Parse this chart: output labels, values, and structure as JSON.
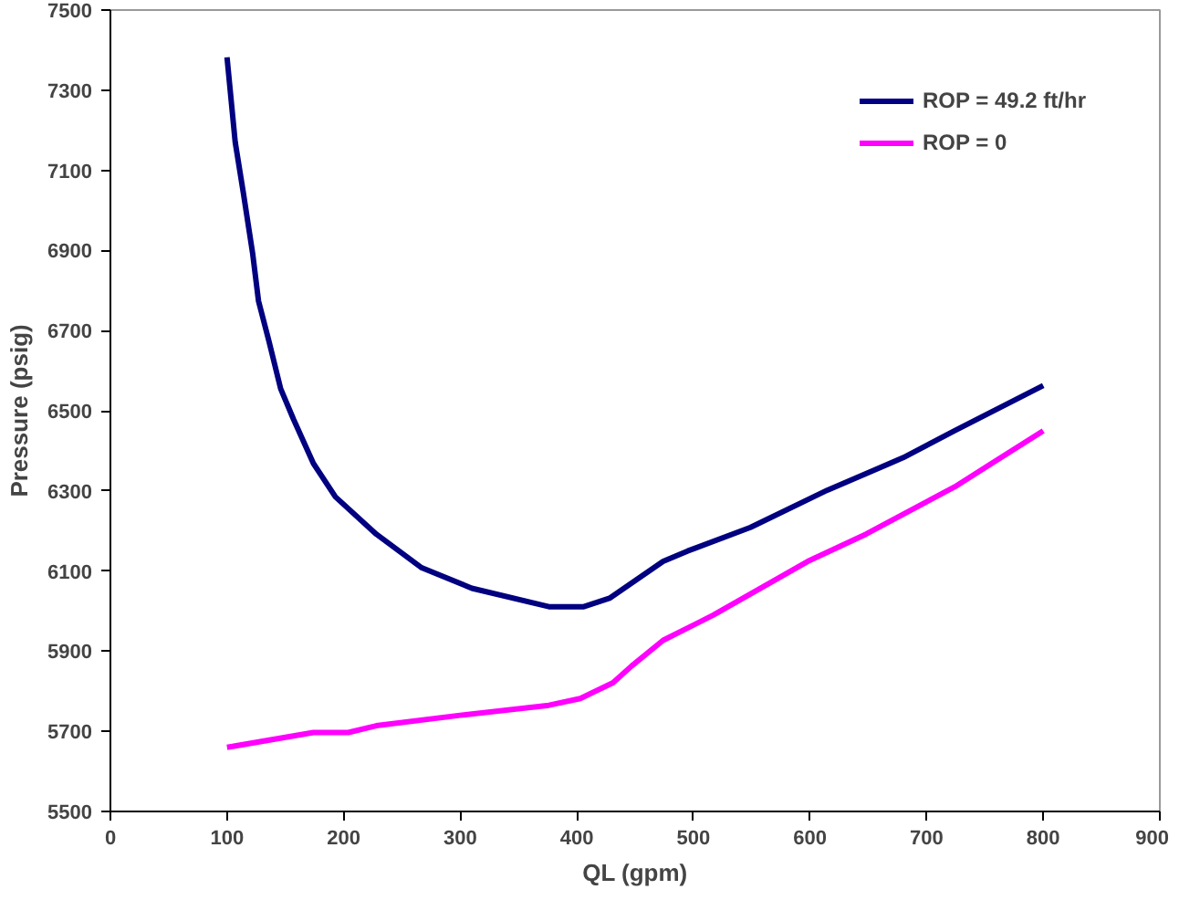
{
  "chart_data": {
    "type": "line",
    "xlabel": "QL (gpm)",
    "ylabel": "Pressure (psig)",
    "xlim": [
      0,
      900
    ],
    "ylim": [
      5500,
      7500
    ],
    "xticks": [
      0,
      100,
      200,
      300,
      400,
      500,
      600,
      700,
      800,
      900
    ],
    "yticks": [
      5500,
      5700,
      5900,
      6100,
      6300,
      6500,
      6700,
      6900,
      7100,
      7300,
      7500
    ],
    "grid": false,
    "legend": "top right",
    "marker": "none",
    "line_style": "solid",
    "series": [
      {
        "name": "ROP = 49.2 ft/hr",
        "color": "#000080",
        "x": [
          100,
          107,
          114,
          122,
          127,
          136,
          146,
          157,
          174,
          193,
          228,
          267,
          310,
          376,
          406,
          428,
          474,
          495,
          549,
          615,
          680,
          724,
          800
        ],
        "values": [
          7382,
          7171,
          7044,
          6892,
          6774,
          6673,
          6555,
          6479,
          6369,
          6285,
          6192,
          6108,
          6057,
          6011,
          6011,
          6032,
          6124,
          6150,
          6209,
          6302,
          6383,
          6450,
          6563
        ]
      },
      {
        "name": "ROP = 0",
        "color": "#ff00ff",
        "x": [
          100,
          174,
          204,
          228,
          300,
          376,
          403,
          431,
          447,
          474,
          517,
          598,
          648,
          724,
          800
        ],
        "values": [
          5660,
          5697,
          5697,
          5714,
          5740,
          5765,
          5782,
          5821,
          5863,
          5927,
          5990,
          6124,
          6192,
          6310,
          6450
        ]
      }
    ]
  }
}
